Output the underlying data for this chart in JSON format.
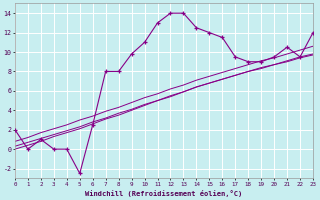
{
  "xlabel": "Windchill (Refroidissement éolien,°C)",
  "bg_color": "#c8eef0",
  "grid_color": "#ffffff",
  "line_color": "#880088",
  "x_data": [
    0,
    1,
    2,
    3,
    4,
    5,
    6,
    7,
    8,
    9,
    10,
    11,
    12,
    13,
    14,
    15,
    16,
    17,
    18,
    19,
    20,
    21,
    22,
    23
  ],
  "y_main": [
    2,
    0,
    1,
    0,
    0,
    -2.5,
    2.5,
    8,
    8,
    9.8,
    11,
    13,
    14,
    14,
    12.5,
    12,
    11.5,
    9.5,
    9,
    9,
    9.5,
    10.5,
    9.5,
    12
  ],
  "y_line1": [
    0.3,
    0.7,
    1.1,
    1.5,
    1.9,
    2.3,
    2.8,
    3.2,
    3.7,
    4.1,
    4.6,
    5.0,
    5.5,
    5.9,
    6.4,
    6.8,
    7.2,
    7.6,
    8.0,
    8.4,
    8.7,
    9.1,
    9.5,
    9.8
  ],
  "y_line2": [
    0.0,
    0.4,
    0.8,
    1.3,
    1.7,
    2.1,
    2.6,
    3.1,
    3.5,
    4.0,
    4.5,
    5.0,
    5.4,
    5.9,
    6.4,
    6.8,
    7.2,
    7.6,
    8.0,
    8.3,
    8.7,
    9.0,
    9.4,
    9.7
  ],
  "y_line3": [
    0.8,
    1.2,
    1.7,
    2.1,
    2.5,
    3.0,
    3.4,
    3.9,
    4.3,
    4.8,
    5.3,
    5.7,
    6.2,
    6.6,
    7.1,
    7.5,
    7.9,
    8.3,
    8.7,
    9.1,
    9.4,
    9.8,
    10.2,
    10.6
  ],
  "xlim": [
    0,
    23
  ],
  "ylim": [
    -3,
    15
  ],
  "yticks": [
    -2,
    0,
    2,
    4,
    6,
    8,
    10,
    12,
    14
  ],
  "xticks": [
    0,
    1,
    2,
    3,
    4,
    5,
    6,
    7,
    8,
    9,
    10,
    11,
    12,
    13,
    14,
    15,
    16,
    17,
    18,
    19,
    20,
    21,
    22,
    23
  ]
}
